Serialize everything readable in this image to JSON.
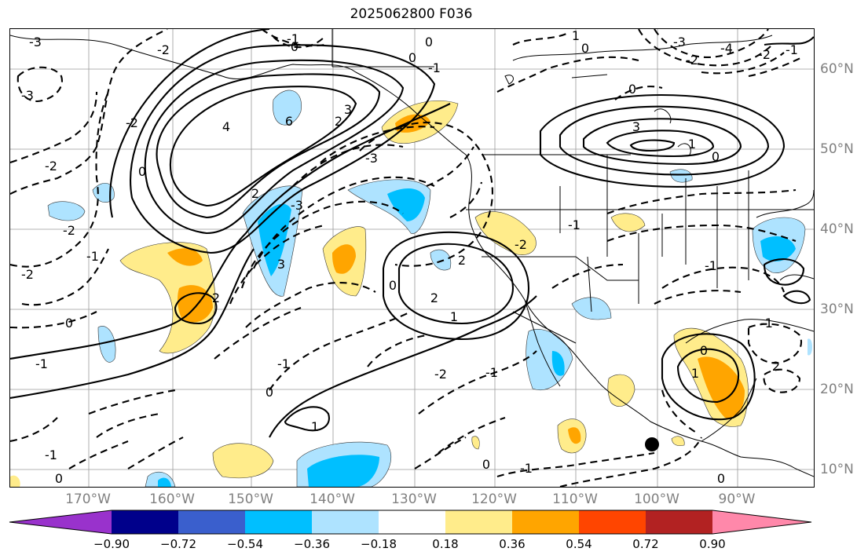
{
  "title": "2025062800 F036",
  "map": {
    "lon_labels": [
      "170°W",
      "160°W",
      "150°W",
      "140°W",
      "130°W",
      "120°W",
      "110°W",
      "100°W",
      "90°W"
    ],
    "lat_labels": [
      "60°N",
      "50°N",
      "40°N",
      "30°N",
      "20°N",
      "10°N"
    ],
    "contour_labels": {
      "c1": "-3",
      "c2": "-2",
      "c3": "-3",
      "c4": "-2",
      "c5": "-2",
      "c6": "-2",
      "c7": "-1",
      "c8": "0",
      "c9": "-1",
      "c10": "0",
      "c11": "-1",
      "c12": "0",
      "c13": "2",
      "c14": "4",
      "c15": "6",
      "c16": "2",
      "c17": "3",
      "c18": "0",
      "c19": "2",
      "c20": "3",
      "c21": "-3",
      "c22": "-3",
      "c23": "-1",
      "c24": "0",
      "c25": "-1",
      "c26": "0",
      "c27": "1",
      "c28": "0",
      "c29": "-1",
      "c30": "0",
      "c31": "2",
      "c32": "2",
      "c33": "1",
      "c34": "-2",
      "c35": "-2",
      "c36": "-1",
      "c37": "-1",
      "c38": "0",
      "c39": "1",
      "c40": "-1",
      "c41": "0",
      "c42": "-1",
      "c43": "-2",
      "c44": "-1",
      "c45": "2",
      "c46": "1",
      "c47": "0",
      "c48": "-1",
      "c49": "-2",
      "c50": "0",
      "c51": "-1",
      "c52": "2",
      "c53": "-1",
      "c54": "-2",
      "c55": "0",
      "c56": "-1",
      "c57": "1",
      "c58": "0",
      "c59": "-3",
      "c60": "-1",
      "c61": "-2",
      "c62": "3",
      "c63": "-4",
      "c64": "-3",
      "c65": "-2",
      "c66": "-1"
    },
    "marker": "filled-black-circle"
  },
  "colorbar": {
    "colors": [
      "#9932cc",
      "#00008b",
      "#3a5fcd",
      "#00bfff",
      "#aee3ff",
      "#ffffff",
      "#ffec8b",
      "#ffa500",
      "#ff4500",
      "#b22222",
      "#ff88aa"
    ],
    "tick_labels": [
      "−0.90",
      "−0.72",
      "−0.54",
      "−0.36",
      "−0.18",
      "0.18",
      "0.36",
      "0.54",
      "0.72",
      "0.90"
    ]
  }
}
